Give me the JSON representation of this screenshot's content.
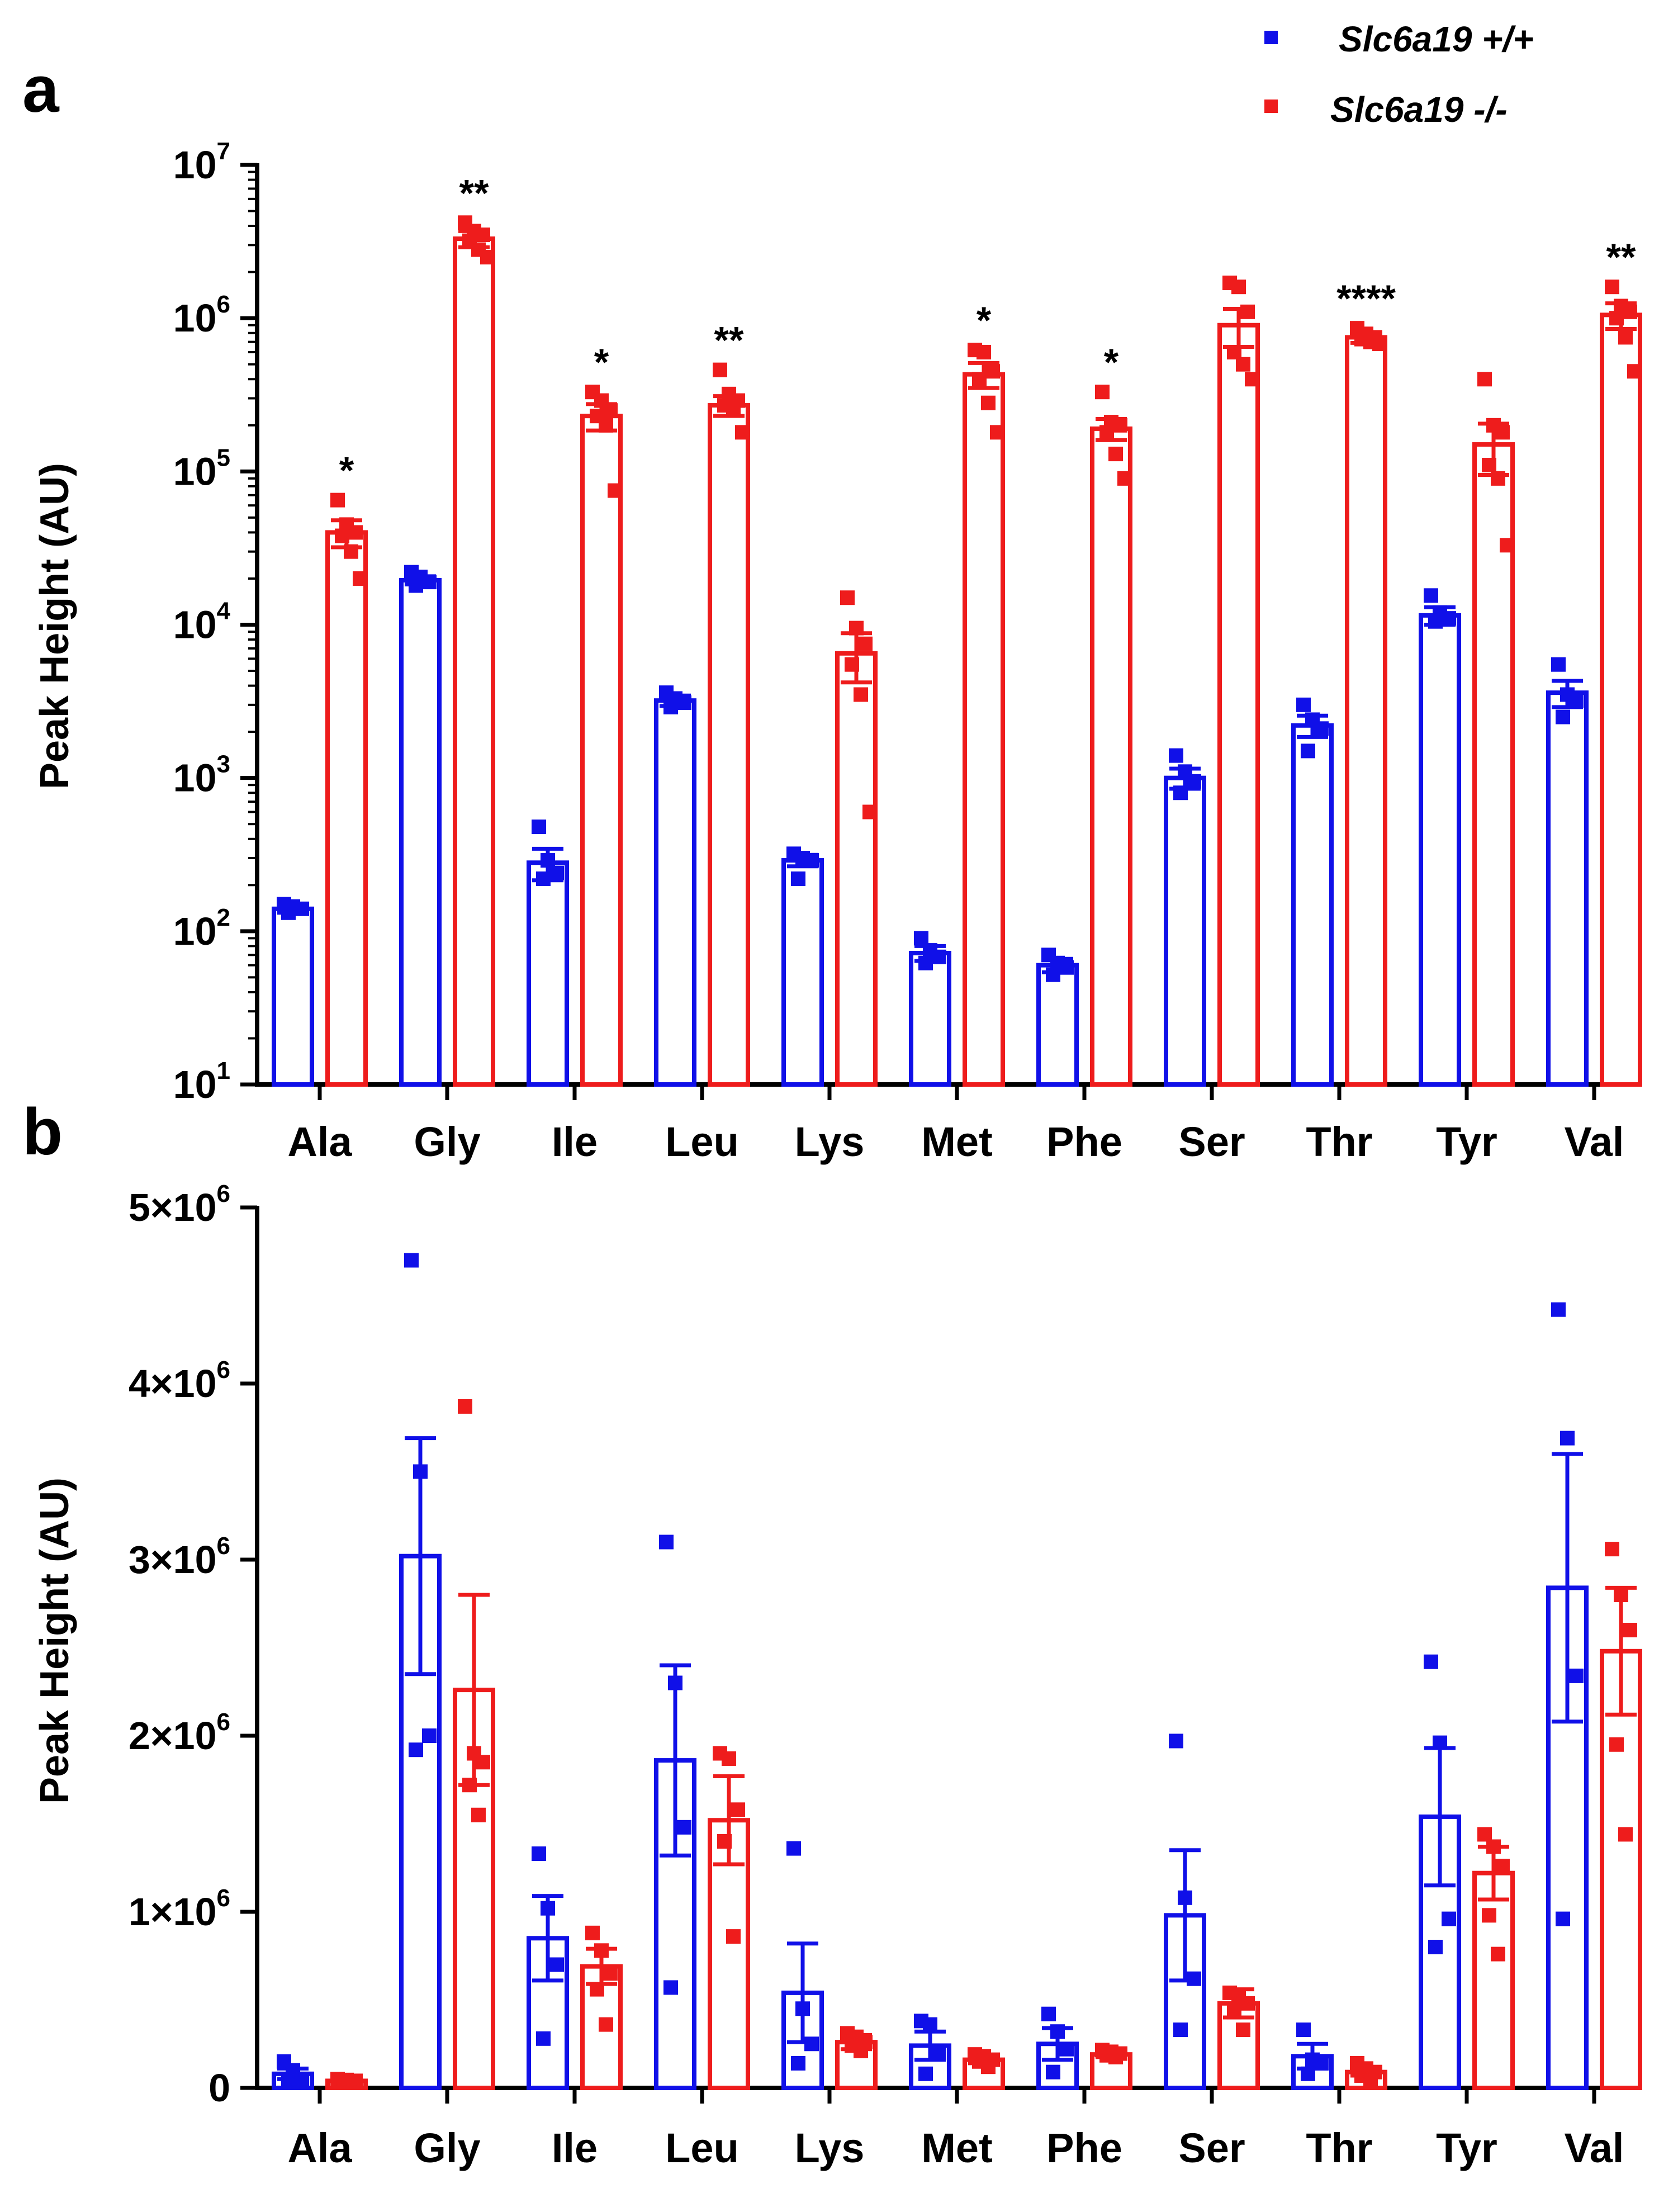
{
  "legend": {
    "items": [
      {
        "name": "Slc6a19 +/+",
        "color": "#1010e8"
      },
      {
        "name": "Slc6a19 -/-",
        "color": "#ee1c1c"
      }
    ]
  },
  "panels": {
    "a": {
      "letter": "a"
    },
    "b": {
      "letter": "b"
    }
  },
  "chart_data": [
    {
      "panel": "a",
      "type": "bar",
      "yscale": "log",
      "ylabel": "Peak Height (AU)",
      "ylim": [
        10,
        10000000
      ],
      "ytick_labels": [
        {
          "base": "10",
          "exp": "1"
        },
        {
          "base": "10",
          "exp": "2"
        },
        {
          "base": "10",
          "exp": "3"
        },
        {
          "base": "10",
          "exp": "4"
        },
        {
          "base": "10",
          "exp": "5"
        },
        {
          "base": "10",
          "exp": "6"
        },
        {
          "base": "10",
          "exp": "7"
        }
      ],
      "categories": [
        "Ala",
        "Gly",
        "Ile",
        "Leu",
        "Lys",
        "Met",
        "Phe",
        "Ser",
        "Thr",
        "Tyr",
        "Val"
      ],
      "significance": [
        "*",
        "**",
        "*",
        "**",
        "",
        "*",
        "*",
        "",
        "****",
        "",
        "**"
      ],
      "series": [
        {
          "name": "Slc6a19 +/+",
          "color": "#1010e8",
          "values": [
            140,
            19500,
            280,
            3200,
            290,
            72,
            60,
            1000,
            2200,
            11500,
            3600
          ],
          "errors": [
            8,
            1200,
            65,
            250,
            25,
            8,
            6,
            150,
            350,
            1500,
            700
          ],
          "points": [
            [
              150,
              145,
              140,
              132
            ],
            [
              22000,
              20500,
              19000,
              18000
            ],
            [
              480,
              290,
              240,
              220
            ],
            [
              3600,
              3300,
              3100,
              2900
            ],
            [
              320,
              300,
              290,
              220
            ],
            [
              90,
              75,
              68,
              62
            ],
            [
              70,
              62,
              58,
              52
            ],
            [
              1400,
              1100,
              950,
              800
            ],
            [
              3000,
              2400,
              2100,
              1500
            ],
            [
              15500,
              12000,
              11000,
              10500
            ],
            [
              5500,
              3500,
              3200,
              2500
            ]
          ]
        },
        {
          "name": "Slc6a19 -/-",
          "color": "#ee1c1c",
          "values": [
            40000,
            3300000,
            230000,
            270000,
            6500,
            430000,
            190000,
            900000,
            750000,
            150000,
            1050000
          ],
          "errors": [
            8000,
            400000,
            45000,
            40000,
            2300,
            80000,
            30000,
            250000,
            60000,
            55000,
            200000
          ],
          "points": [
            [
              65000,
              45000,
              40000,
              38000,
              30000,
              20000
            ],
            [
              4200000,
              3700000,
              3500000,
              3200000,
              2800000,
              2500000
            ],
            [
              330000,
              290000,
              250000,
              230000,
              200000,
              75000
            ],
            [
              460000,
              320000,
              290000,
              270000,
              250000,
              180000
            ],
            [
              15000,
              9500,
              7500,
              5500,
              3500,
              600
            ],
            [
              620000,
              600000,
              450000,
              400000,
              280000,
              180000
            ],
            [
              330000,
              210000,
              200000,
              180000,
              130000,
              90000
            ],
            [
              1700000,
              1600000,
              1100000,
              600000,
              500000,
              400000
            ],
            [
              860000,
              790000,
              750000,
              730000,
              700000,
              680000
            ],
            [
              400000,
              200000,
              180000,
              110000,
              90000,
              33000
            ],
            [
              1600000,
              1200000,
              1100000,
              1000000,
              750000,
              450000
            ]
          ]
        }
      ]
    },
    {
      "panel": "b",
      "type": "bar",
      "yscale": "linear",
      "ylabel": "Peak Height (AU)",
      "ylim": [
        0,
        5000000
      ],
      "ytick_labels": [
        {
          "base": "0",
          "exp": ""
        },
        {
          "base": "1×10",
          "exp": "6"
        },
        {
          "base": "2×10",
          "exp": "6"
        },
        {
          "base": "3×10",
          "exp": "6"
        },
        {
          "base": "4×10",
          "exp": "6"
        },
        {
          "base": "5×10",
          "exp": "6"
        }
      ],
      "categories": [
        "Ala",
        "Gly",
        "Ile",
        "Leu",
        "Lys",
        "Met",
        "Phe",
        "Ser",
        "Thr",
        "Tyr",
        "Val"
      ],
      "series": [
        {
          "name": "Slc6a19 +/+",
          "color": "#1010e8",
          "values": [
            80000,
            3020000,
            850000,
            1860000,
            540000,
            240000,
            250000,
            980000,
            180000,
            1540000,
            2840000
          ],
          "errors": [
            30000,
            670000,
            240000,
            540000,
            280000,
            80000,
            90000,
            370000,
            70000,
            390000,
            760000
          ],
          "points": [
            [
              150000,
              100000,
              50000,
              30000
            ],
            [
              4700000,
              3500000,
              2000000,
              1920000
            ],
            [
              1330000,
              1020000,
              700000,
              280000
            ],
            [
              3100000,
              2300000,
              1480000,
              570000
            ],
            [
              1360000,
              450000,
              250000,
              140000
            ],
            [
              380000,
              360000,
              200000,
              80000
            ],
            [
              420000,
              320000,
              220000,
              90000
            ],
            [
              1970000,
              1080000,
              620000,
              330000
            ],
            [
              330000,
              160000,
              140000,
              80000
            ],
            [
              2420000,
              1960000,
              960000,
              800000
            ],
            [
              4420000,
              3690000,
              2340000,
              960000
            ]
          ]
        },
        {
          "name": "Slc6a19 -/-",
          "color": "#ee1c1c",
          "values": [
            40000,
            2260000,
            690000,
            1520000,
            260000,
            160000,
            190000,
            480000,
            90000,
            1220000,
            2480000
          ],
          "errors": [
            10000,
            540000,
            100000,
            250000,
            40000,
            20000,
            15000,
            80000,
            20000,
            150000,
            360000
          ],
          "points": [
            [
              50000,
              45000,
              40000,
              35000,
              30000
            ],
            [
              3870000,
              1900000,
              1850000,
              1720000,
              1550000
            ],
            [
              880000,
              780000,
              650000,
              560000,
              360000
            ],
            [
              1900000,
              1870000,
              1580000,
              1400000,
              860000
            ],
            [
              310000,
              290000,
              260000,
              240000,
              210000
            ],
            [
              190000,
              180000,
              160000,
              150000,
              120000
            ],
            [
              215000,
              205000,
              195000,
              185000,
              175000
            ],
            [
              540000,
              520000,
              480000,
              430000,
              330000
            ],
            [
              140000,
              110000,
              90000,
              70000,
              50000
            ],
            [
              1440000,
              1370000,
              1260000,
              980000,
              760000
            ],
            [
              3060000,
              2800000,
              2600000,
              1950000,
              1440000
            ]
          ]
        }
      ]
    }
  ]
}
